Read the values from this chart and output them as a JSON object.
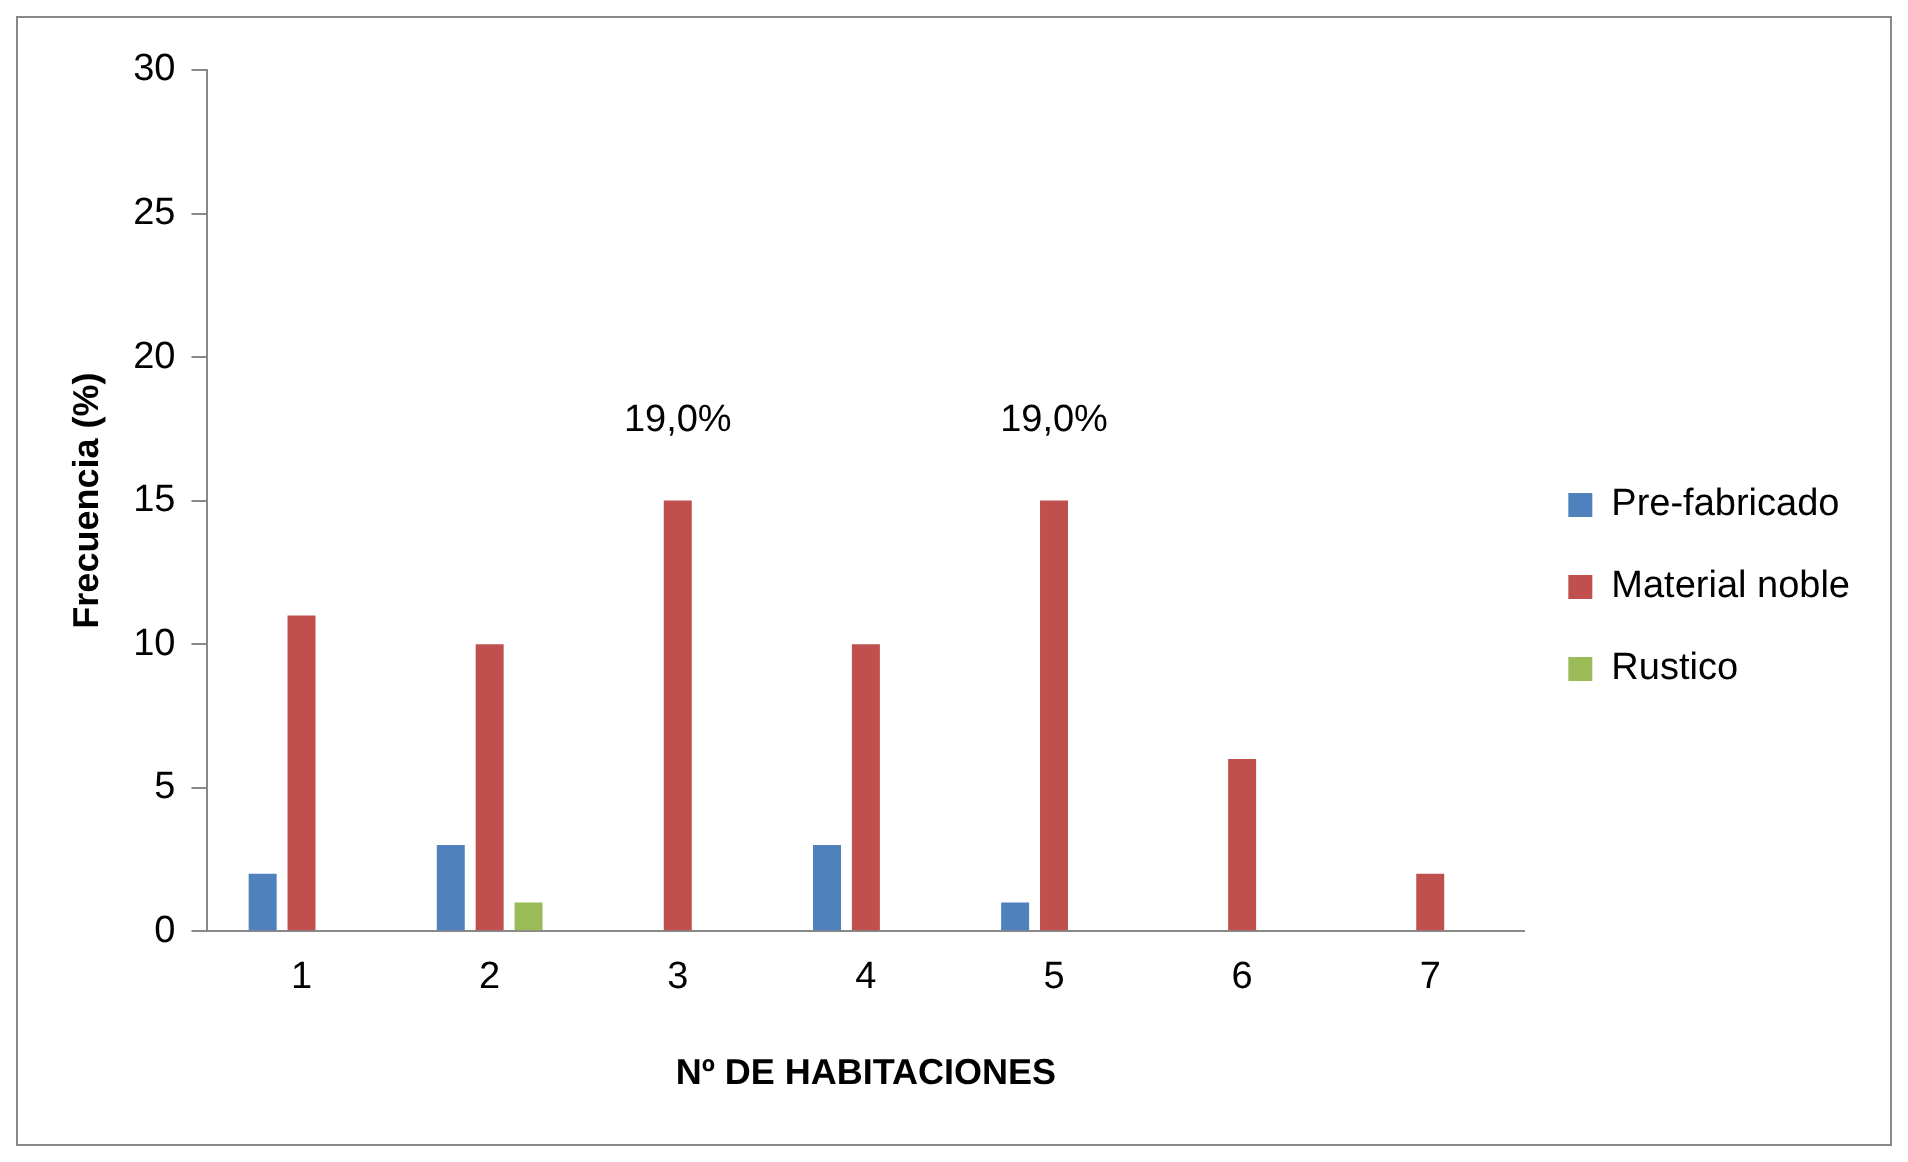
{
  "chart_data": {
    "type": "bar",
    "xlabel": "Nº DE HABITACIONES",
    "ylabel": "Frecuencia (%)",
    "categories": [
      "1",
      "2",
      "3",
      "4",
      "5",
      "6",
      "7"
    ],
    "series": [
      {
        "name": "Pre-fabricado",
        "color": "#4f81bd",
        "values": [
          2,
          3,
          null,
          3,
          1,
          null,
          null
        ]
      },
      {
        "name": "Material noble",
        "color": "#c0504d",
        "values": [
          11,
          10,
          15,
          10,
          15,
          6,
          2
        ]
      },
      {
        "name": "Rustico",
        "color": "#9bbb59",
        "values": [
          null,
          1,
          null,
          null,
          null,
          null,
          null
        ]
      }
    ],
    "annotations": [
      {
        "text": "19,0%",
        "x": "3",
        "y": 15
      },
      {
        "text": "19,0%",
        "x": "5",
        "y": 15
      }
    ],
    "ylim": [
      0,
      30
    ],
    "yticks": [
      0,
      5,
      10,
      15,
      20,
      25,
      30
    ],
    "grid": false,
    "legend": "right"
  }
}
